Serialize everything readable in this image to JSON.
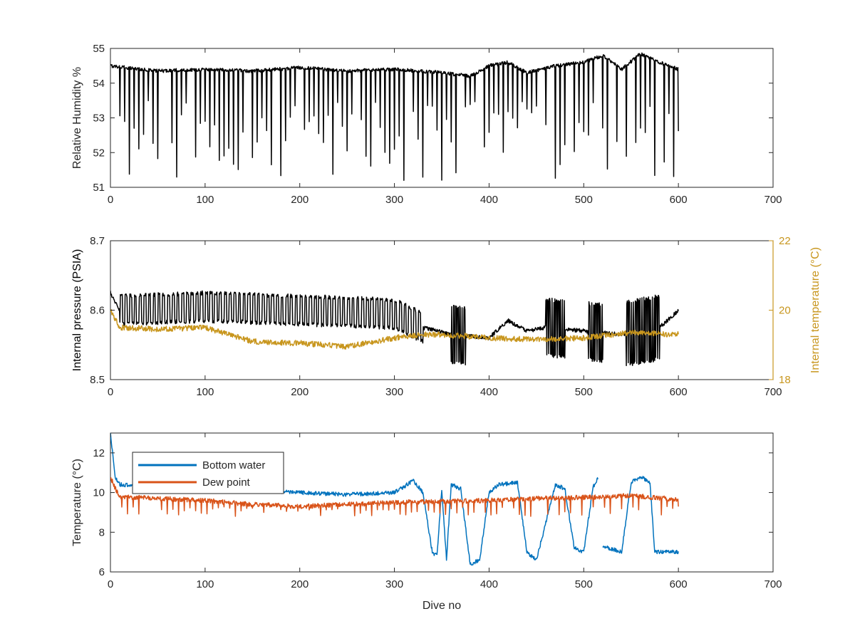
{
  "figure": {
    "background": "#ffffff",
    "axis_color": "#262626"
  },
  "chart_data": [
    {
      "type": "line",
      "title": "",
      "xlabel": "",
      "ylabel": "Relative Humidity %",
      "xlim": [
        0,
        700
      ],
      "ylim": [
        51,
        55
      ],
      "xticks": [
        0,
        100,
        200,
        300,
        400,
        500,
        600,
        700
      ],
      "yticks": [
        51,
        52,
        53,
        54,
        55
      ],
      "grid": false,
      "series": [
        {
          "color": "#000000",
          "segments": [
            [
              0,
              600
            ]
          ],
          "base": [
            [
              0,
              54.5
            ],
            [
              50,
              54.35
            ],
            [
              100,
              54.4
            ],
            [
              150,
              54.35
            ],
            [
              200,
              54.45
            ],
            [
              250,
              54.35
            ],
            [
              300,
              54.4
            ],
            [
              350,
              54.3
            ],
            [
              380,
              54.2
            ],
            [
              400,
              54.5
            ],
            [
              420,
              54.6
            ],
            [
              440,
              54.3
            ],
            [
              470,
              54.5
            ],
            [
              500,
              54.6
            ],
            [
              520,
              54.8
            ],
            [
              540,
              54.4
            ],
            [
              560,
              54.85
            ],
            [
              580,
              54.6
            ],
            [
              600,
              54.4
            ]
          ],
          "noise": 0.05,
          "spikes": {
            "from": 10,
            "to": 600,
            "every": 5,
            "min": 51.2,
            "max": 53.5
          }
        }
      ]
    },
    {
      "type": "line",
      "title": "",
      "xlabel": "",
      "ylabel": "Internal pressure (PSIA)",
      "ylabel_right": "Internal temperature (°C)",
      "xlim": [
        0,
        700
      ],
      "ylim": [
        8.5,
        8.7
      ],
      "ylim_right": [
        18,
        22
      ],
      "xticks": [
        0,
        100,
        200,
        300,
        400,
        500,
        600,
        700
      ],
      "yticks": [
        8.5,
        8.6,
        8.7
      ],
      "yticks_right": [
        18,
        20,
        22
      ],
      "grid": false,
      "series": [
        {
          "axis": "left",
          "color": "#000000",
          "segments": [
            [
              0,
              600
            ]
          ],
          "base": [
            [
              0,
              8.625
            ],
            [
              10,
              8.6
            ],
            [
              100,
              8.605
            ],
            [
              200,
              8.6
            ],
            [
              300,
              8.595
            ],
            [
              330,
              8.575
            ],
            [
              360,
              8.565
            ],
            [
              400,
              8.56
            ],
            [
              420,
              8.585
            ],
            [
              440,
              8.57
            ],
            [
              460,
              8.575
            ],
            [
              500,
              8.57
            ],
            [
              540,
              8.565
            ],
            [
              580,
              8.575
            ],
            [
              600,
              8.6
            ]
          ],
          "noise": 0.003,
          "oscillation": [
            {
              "from": 10,
              "to": 330,
              "amplitude": 0.04,
              "period": 5
            },
            {
              "from": 360,
              "to": 375,
              "amplitude": 0.08,
              "period": 1
            },
            {
              "from": 460,
              "to": 480,
              "amplitude": 0.08,
              "period": 1
            },
            {
              "from": 505,
              "to": 520,
              "amplitude": 0.08,
              "period": 1
            },
            {
              "from": 545,
              "to": 580,
              "amplitude": 0.09,
              "period": 1
            }
          ]
        },
        {
          "axis": "right",
          "color": "#c8961e",
          "segments": [
            [
              0,
              600
            ]
          ],
          "base": [
            [
              0,
              20.0
            ],
            [
              10,
              19.5
            ],
            [
              50,
              19.45
            ],
            [
              100,
              19.5
            ],
            [
              150,
              19.1
            ],
            [
              200,
              19.05
            ],
            [
              250,
              18.95
            ],
            [
              300,
              19.2
            ],
            [
              330,
              19.3
            ],
            [
              350,
              19.3
            ],
            [
              400,
              19.2
            ],
            [
              450,
              19.15
            ],
            [
              500,
              19.2
            ],
            [
              550,
              19.35
            ],
            [
              600,
              19.3
            ]
          ],
          "noise": 0.08
        }
      ]
    },
    {
      "type": "line",
      "title": "",
      "xlabel": "Dive no",
      "ylabel": "Temperature (°C)",
      "xlim": [
        0,
        700
      ],
      "ylim": [
        6,
        13
      ],
      "xticks": [
        0,
        100,
        200,
        300,
        400,
        500,
        600,
        700
      ],
      "yticks": [
        6,
        8,
        10,
        12
      ],
      "grid": false,
      "legend": {
        "placement": "top-left",
        "entries": [
          "Bottom water",
          "Dew point"
        ]
      },
      "series": [
        {
          "name": "Bottom water",
          "color": "#0072bd",
          "segments": [
            [
              0,
              515
            ],
            [
              520,
              600
            ]
          ],
          "base": [
            [
              0,
              13.0
            ],
            [
              5,
              10.8
            ],
            [
              10,
              10.4
            ],
            [
              100,
              10.2
            ],
            [
              200,
              10.0
            ],
            [
              250,
              9.9
            ],
            [
              300,
              10.0
            ],
            [
              310,
              10.3
            ],
            [
              320,
              10.6
            ],
            [
              330,
              10.0
            ],
            [
              340,
              7.0
            ],
            [
              345,
              6.8
            ],
            [
              350,
              10.2
            ],
            [
              355,
              6.6
            ],
            [
              360,
              10.4
            ],
            [
              370,
              10.2
            ],
            [
              380,
              6.4
            ],
            [
              390,
              6.6
            ],
            [
              400,
              10.0
            ],
            [
              410,
              10.4
            ],
            [
              430,
              10.5
            ],
            [
              440,
              7.0
            ],
            [
              450,
              6.6
            ],
            [
              470,
              10.4
            ],
            [
              480,
              10.2
            ],
            [
              490,
              7.2
            ],
            [
              500,
              7.0
            ],
            [
              510,
              10.3
            ],
            [
              515,
              10.7
            ],
            [
              520,
              7.3
            ],
            [
              540,
              7.0
            ],
            [
              550,
              10.5
            ],
            [
              560,
              10.8
            ],
            [
              570,
              10.5
            ],
            [
              575,
              7.0
            ],
            [
              600,
              7.0
            ],
            [
              602,
              8.8
            ]
          ],
          "noise": 0.1
        },
        {
          "name": "Dew point",
          "color": "#d95319",
          "segments": [
            [
              0,
              600
            ]
          ],
          "base": [
            [
              0,
              10.8
            ],
            [
              5,
              10.2
            ],
            [
              10,
              9.8
            ],
            [
              100,
              9.6
            ],
            [
              150,
              9.4
            ],
            [
              200,
              9.3
            ],
            [
              250,
              9.4
            ],
            [
              300,
              9.5
            ],
            [
              350,
              9.55
            ],
            [
              400,
              9.6
            ],
            [
              450,
              9.7
            ],
            [
              500,
              9.75
            ],
            [
              550,
              9.85
            ],
            [
              600,
              9.65
            ]
          ],
          "noise": 0.12,
          "spikes": {
            "from": 10,
            "to": 600,
            "every": 6,
            "min": 8.8,
            "max": 9.3
          }
        }
      ]
    }
  ]
}
